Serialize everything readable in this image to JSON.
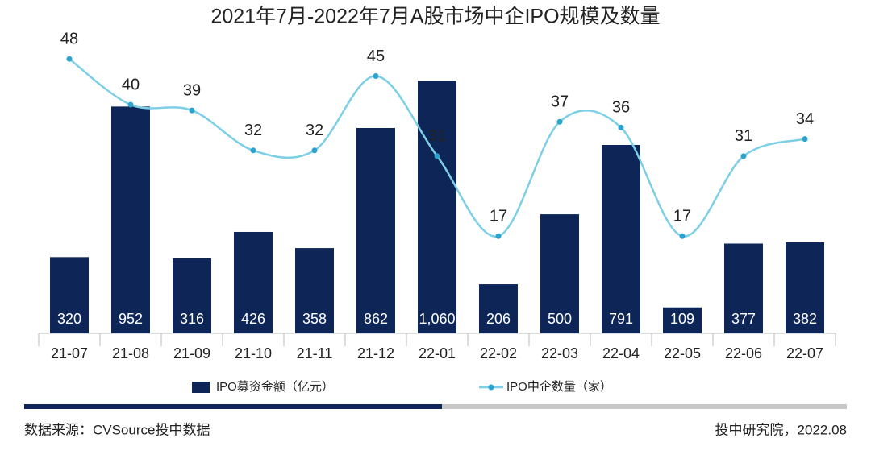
{
  "chart_data": {
    "type": "bar",
    "title": "2021年7月-2022年7月A股市场中企IPO规模及数量",
    "categories": [
      "21-07",
      "21-08",
      "21-09",
      "21-10",
      "21-11",
      "21-12",
      "22-01",
      "22-02",
      "22-03",
      "22-04",
      "22-05",
      "22-06",
      "22-07"
    ],
    "series": [
      {
        "name": "IPO募资金额（亿元）",
        "type": "bar",
        "color": "#0d2557",
        "values": [
          320,
          952,
          316,
          426,
          358,
          862,
          1060,
          206,
          500,
          791,
          109,
          377,
          382
        ],
        "value_labels": [
          "320",
          "952",
          "316",
          "426",
          "358",
          "862",
          "1,060",
          "206",
          "500",
          "791",
          "109",
          "377",
          "382"
        ]
      },
      {
        "name": "IPO中企数量（家）",
        "type": "line",
        "axis": "y2",
        "color": "#7ccfe6",
        "marker_color": "#2ba3cf",
        "values": [
          48,
          40,
          39,
          32,
          32,
          45,
          31,
          17,
          37,
          36,
          17,
          31,
          34
        ]
      }
    ],
    "ylim": [
      0,
      1200
    ],
    "y2lim": [
      0,
      50
    ],
    "grid": false,
    "legend": "bottom",
    "source": "数据来源：CVSource投中数据",
    "credit": "投中研究院，2022.08"
  }
}
